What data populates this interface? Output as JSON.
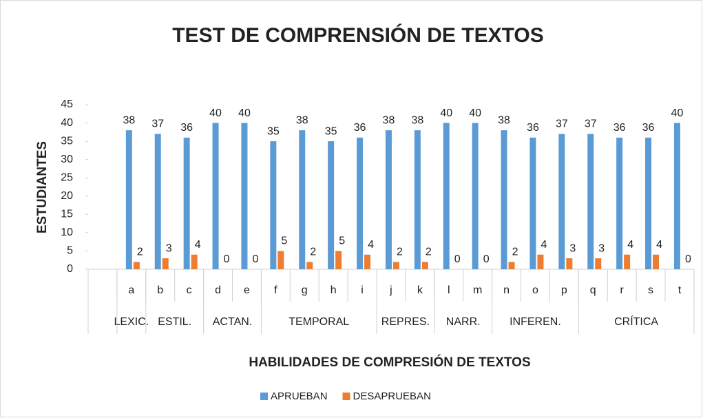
{
  "chart_data": {
    "type": "bar",
    "title": "TEST DE COMPRENSIÓN DE TEXTOS",
    "xlabel": "HABILIDADES DE COMPRESIÓN DE TEXTOS",
    "ylabel": "ESTUDIANTES",
    "categories": [
      null,
      "a",
      "b",
      "c",
      "d",
      "e",
      "f",
      "g",
      "h",
      "i",
      "j",
      "k",
      "l",
      "m",
      "n",
      "o",
      "p",
      "q",
      "r",
      "s",
      "t"
    ],
    "groups": [
      {
        "name": "LEXIC.",
        "span": 1
      },
      {
        "name": "ESTIL.",
        "span": 2
      },
      {
        "name": "ACTAN.",
        "span": 2
      },
      {
        "name": "TEMPORAL",
        "span": 4
      },
      {
        "name": "REPRES.",
        "span": 2
      },
      {
        "name": "NARR.",
        "span": 2
      },
      {
        "name": "INFEREN.",
        "span": 3
      },
      {
        "name": "CRÍTICA",
        "span": 4
      }
    ],
    "series": [
      {
        "name": "APRUEBAN",
        "color": "#5b9bd5",
        "values": [
          null,
          38,
          37,
          36,
          40,
          40,
          35,
          38,
          35,
          36,
          38,
          38,
          40,
          40,
          38,
          36,
          37,
          37,
          36,
          36,
          40
        ]
      },
      {
        "name": "DESAPRUEBAN",
        "color": "#ed7d31",
        "values": [
          null,
          2,
          3,
          4,
          0,
          0,
          5,
          2,
          5,
          4,
          2,
          2,
          0,
          0,
          2,
          4,
          3,
          3,
          4,
          4,
          0
        ]
      }
    ],
    "ylim": [
      0,
      45
    ],
    "yticks": [
      0,
      5,
      10,
      15,
      20,
      25,
      30,
      35,
      40,
      45
    ],
    "grid": false,
    "legend": "bottom"
  }
}
